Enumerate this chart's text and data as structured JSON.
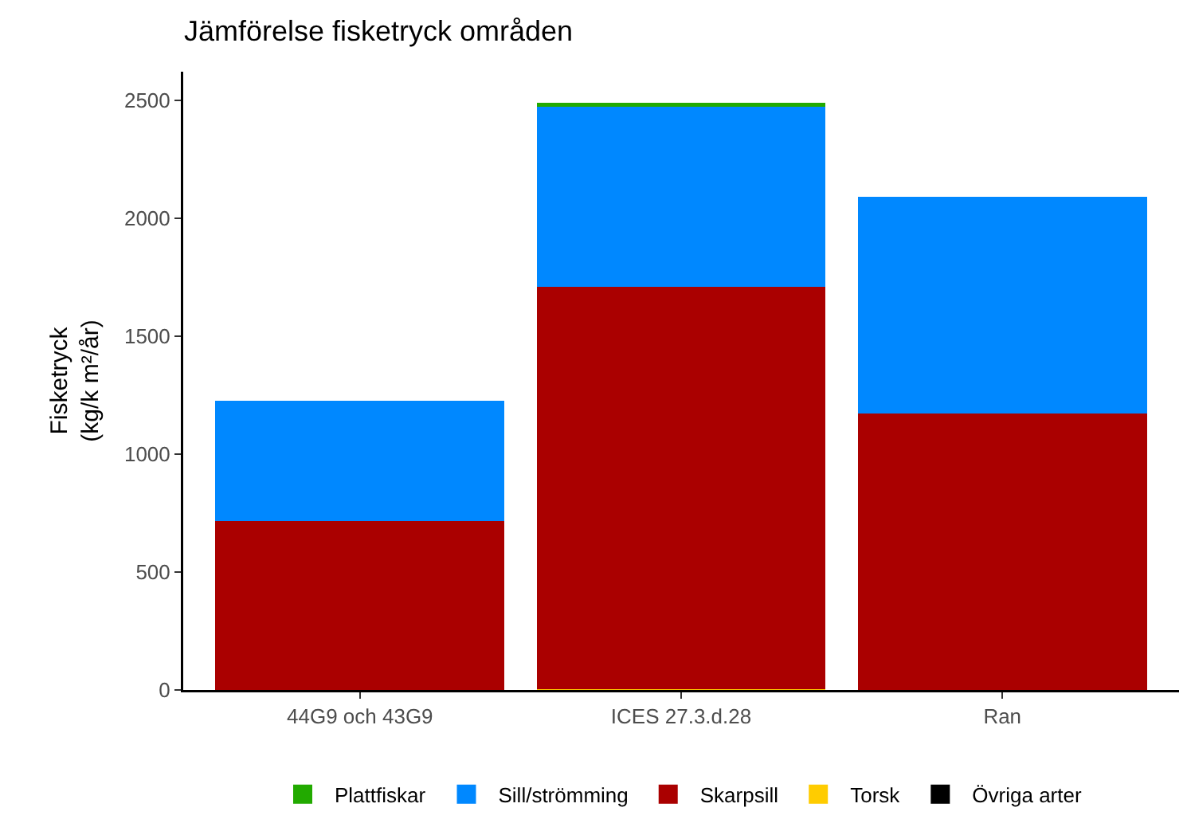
{
  "chart_data": {
    "type": "bar",
    "title": "Jämförelse fisketryck områden",
    "ylabel": "Fisketryck\n(kg/k m²/år)",
    "categories": [
      "44G9 och 43G9",
      "ICES 27.3.d.28",
      "Ran"
    ],
    "stacked": true,
    "ylim": [
      0,
      2620
    ],
    "yticks": [
      0,
      500,
      1000,
      1500,
      2000,
      2500
    ],
    "grid": false,
    "legend": "bottom",
    "series": [
      {
        "name": "Övriga arter",
        "color": "#000000",
        "values": [
          0,
          0,
          0
        ]
      },
      {
        "name": "Torsk",
        "color": "#ffcc00",
        "values": [
          0,
          5,
          0
        ]
      },
      {
        "name": "Skarpsill",
        "color": "#aa0000",
        "values": [
          715,
          1705,
          1170
        ]
      },
      {
        "name": "Sill/strömming",
        "color": "#0088ff",
        "values": [
          510,
          760,
          920
        ]
      },
      {
        "name": "Plattfiskar",
        "color": "#22aa00",
        "values": [
          0,
          20,
          0
        ]
      }
    ]
  }
}
